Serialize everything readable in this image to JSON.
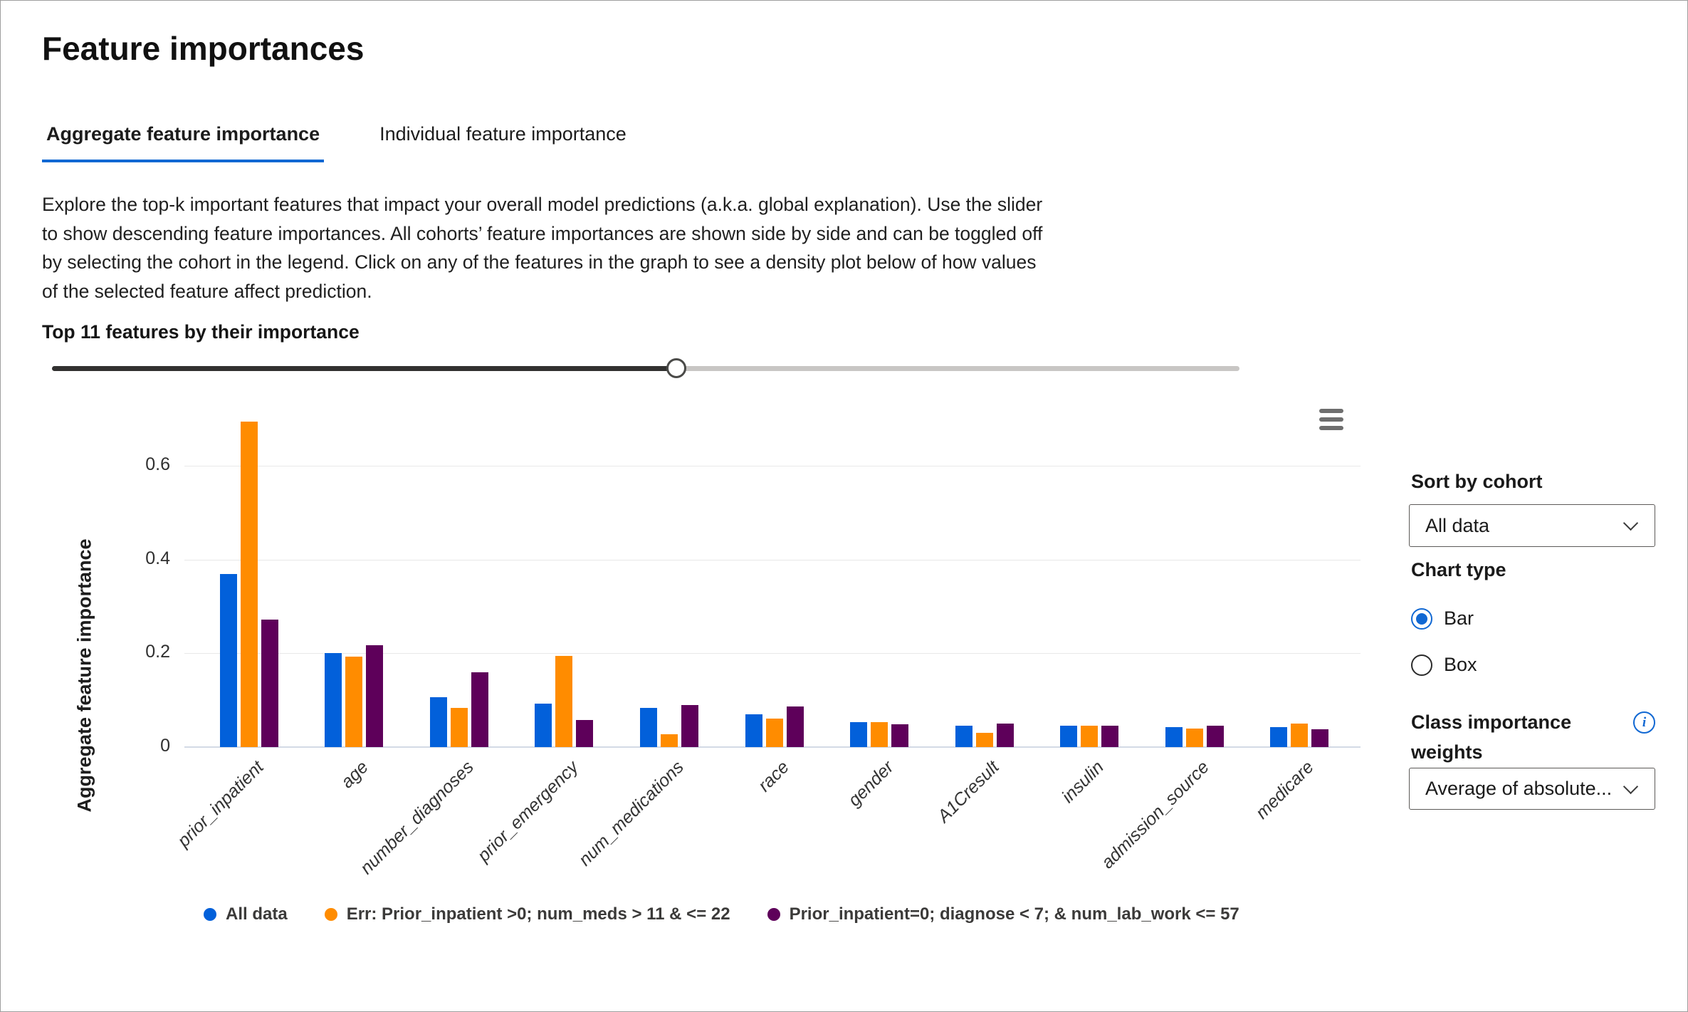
{
  "page": {
    "title": "Feature importances"
  },
  "tabs": [
    {
      "label": "Aggregate feature importance",
      "active": true
    },
    {
      "label": "Individual feature importance",
      "active": false
    }
  ],
  "description_lines": [
    "Explore the top-k important features that impact your overall model predictions (a.k.a. global explanation). Use the slider",
    "to show descending feature importances. All cohorts’ feature importances are shown side by side and can be toggled off",
    "by selecting the cohort in the legend. Click on any of the features in the graph to see a density plot below of how values",
    "of the selected feature affect prediction."
  ],
  "slider": {
    "label": "Top 11 features by their importance",
    "top_k": 11,
    "fill_percent": 52.6
  },
  "chart_data": {
    "type": "bar",
    "title": "",
    "xlabel": "",
    "ylabel": "Aggregate feature importance",
    "ylim": [
      0,
      0.7
    ],
    "yticks": [
      0,
      0.2,
      0.4,
      0.6
    ],
    "grid": true,
    "legend_position": "bottom",
    "categories": [
      "prior_inpatient",
      "age",
      "number_diagnoses",
      "prior_emergency",
      "num_medications",
      "race",
      "gender",
      "A1Cresult",
      "insulin",
      "admission_source",
      "medicare"
    ],
    "series": [
      {
        "name": "All data",
        "color": "#0260da",
        "values": [
          0.37,
          0.201,
          0.107,
          0.092,
          0.084,
          0.07,
          0.053,
          0.045,
          0.045,
          0.042,
          0.042
        ]
      },
      {
        "name": "Err: Prior_inpatient >0; num_meds > 11 & <= 22",
        "color": "#ff8c00",
        "values": [
          0.695,
          0.193,
          0.084,
          0.194,
          0.027,
          0.061,
          0.053,
          0.03,
          0.045,
          0.039,
          0.05
        ]
      },
      {
        "name": "Prior_inpatient=0; diagnose < 7; & num_lab_work <= 57",
        "color": "#5e005a",
        "values": [
          0.272,
          0.218,
          0.16,
          0.057,
          0.09,
          0.086,
          0.048,
          0.05,
          0.045,
          0.045,
          0.038
        ]
      }
    ]
  },
  "panel": {
    "sort_label": "Sort by cohort",
    "sort_value": "All data",
    "chart_type_label": "Chart type",
    "chart_type_options": [
      {
        "label": "Bar",
        "selected": true
      },
      {
        "label": "Box",
        "selected": false
      }
    ],
    "weights_label": "Class importance weights",
    "weights_value": "Average of absolute..."
  },
  "icons": {
    "chart_menu": "hamburger-menu-icon",
    "sort_dropdown": "chevron-down-icon",
    "weights_dropdown": "chevron-down-icon",
    "weights_info": "info-icon"
  },
  "colors": {
    "accent": "#1168d3",
    "slider_fill": "#323130",
    "slider_track": "#c8c6c4",
    "gridline": "#e8e8e8",
    "axis_line": "#d3dae6"
  }
}
